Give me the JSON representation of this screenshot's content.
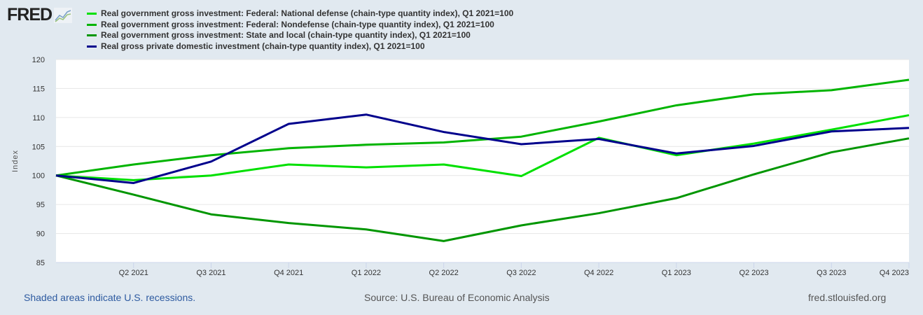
{
  "logo": {
    "text": "FRED"
  },
  "footer": {
    "recession_note": "Shaded areas indicate U.S. recessions.",
    "source": "Source: U.S. Bureau of Economic Analysis",
    "site": "fred.stlouisfed.org"
  },
  "chart_data": {
    "type": "line",
    "title": "",
    "xlabel": "",
    "ylabel": "Index",
    "ylim": [
      85,
      120
    ],
    "yticks": [
      85,
      90,
      95,
      100,
      105,
      110,
      115,
      120
    ],
    "x": [
      "Q1 2021",
      "Q2 2021",
      "Q3 2021",
      "Q4 2021",
      "Q1 2022",
      "Q2 2022",
      "Q3 2022",
      "Q4 2022",
      "Q1 2023",
      "Q2 2023",
      "Q3 2023",
      "Q4 2023"
    ],
    "xtick_labels": [
      "Q2 2021",
      "Q3 2021",
      "Q4 2021",
      "Q1 2022",
      "Q2 2022",
      "Q3 2022",
      "Q4 2022",
      "Q1 2023",
      "Q2 2023",
      "Q3 2023",
      "Q4 2023"
    ],
    "grid": true,
    "legend_position": "top-left",
    "series": [
      {
        "name": "Real government gross investment: Federal: National defense (chain-type quantity index), Q1 2021=100",
        "color": "#00e000",
        "values": [
          100,
          99.2,
          100.0,
          101.9,
          101.4,
          101.9,
          99.9,
          106.5,
          103.5,
          105.5,
          107.9,
          110.4
        ]
      },
      {
        "name": "Real government gross investment: Federal: Nondefense (chain-type quantity index), Q1 2021=100",
        "color": "#00b400",
        "values": [
          100,
          101.9,
          103.5,
          104.7,
          105.3,
          105.7,
          106.7,
          109.3,
          112.1,
          114.0,
          114.7,
          116.5
        ]
      },
      {
        "name": "Real government gross investment: State and local (chain-type quantity index), Q1 2021=100",
        "color": "#009600",
        "values": [
          100,
          96.7,
          93.3,
          91.8,
          90.7,
          88.7,
          91.4,
          93.5,
          96.1,
          100.2,
          104.0,
          106.4
        ]
      },
      {
        "name": "Real gross private domestic investment (chain-type quantity index), Q1 2021=100",
        "color": "#00008c",
        "values": [
          100,
          98.7,
          102.4,
          108.9,
          110.5,
          107.5,
          105.4,
          106.3,
          103.8,
          105.1,
          107.6,
          108.2
        ]
      }
    ]
  }
}
